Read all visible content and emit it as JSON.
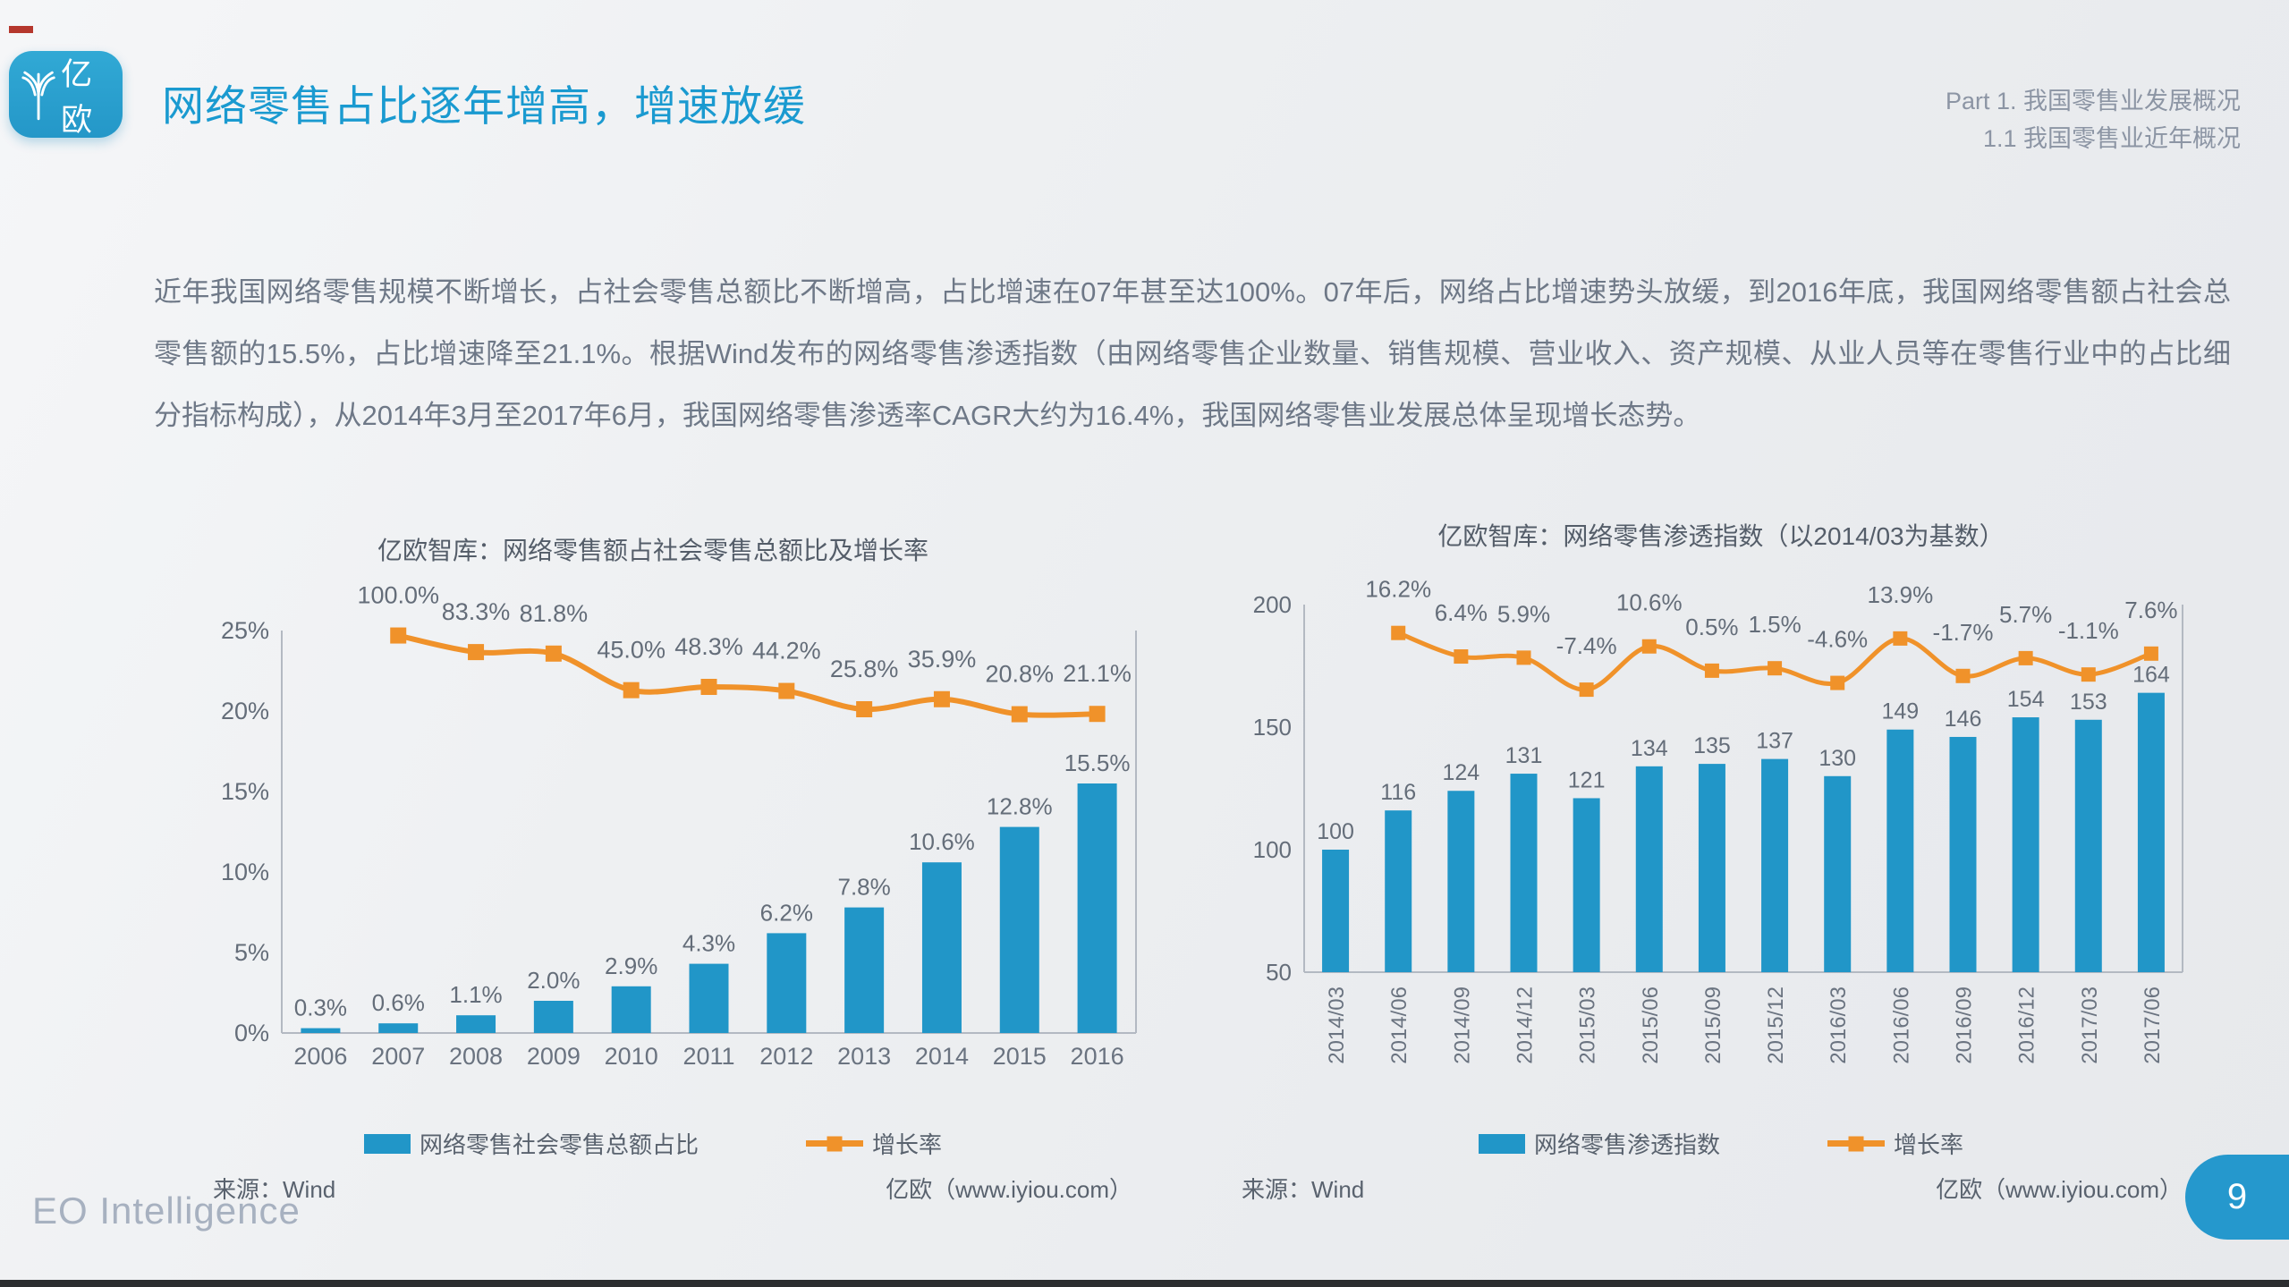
{
  "header": {
    "logo_text": "亿欧",
    "title": "网络零售占比逐年增高，增速放缓",
    "section_line1": "Part 1. 我国零售业发展概况",
    "section_line2": "1.1 我国零售业近年概况"
  },
  "body_paragraph": "近年我国网络零售规模不断增长，占社会零售总额比不断增高，占比增速在07年甚至达100%。07年后，网络占比增速势头放缓，到2016年底，我国网络零售额占社会总零售额的15.5%，占比增速降至21.1%。根据Wind发布的网络零售渗透指数（由网络零售企业数量、销售规模、营业收入、资产规模、从业人员等在零售行业中的占比细分指标构成），从2014年3月至2017年6月，我国网络零售渗透率CAGR大约为16.4%，我国网络零售业发展总体呈现增长态势。",
  "footer": {
    "brand": "EO Intelligence",
    "page_number": "9"
  },
  "colors": {
    "accent_blue": "#2196c8",
    "accent_orange": "#f0922a",
    "title_blue": "#1a9ad0",
    "logo_blue": "#2ba3d0",
    "badge_blue": "#2598cd",
    "text_gray": "#6e7887",
    "axis_gray": "#b3b9c2"
  },
  "chart_data": [
    {
      "type": "bar",
      "title": "亿欧智库：网络零售额占社会零售总额比及增长率",
      "categories": [
        "2006",
        "2007",
        "2008",
        "2009",
        "2010",
        "2011",
        "2012",
        "2013",
        "2014",
        "2015",
        "2016"
      ],
      "y_axis": {
        "tick_labels": [
          "25%",
          "20%",
          "15%",
          "10%",
          "5%",
          "0%"
        ],
        "tick_values": [
          25,
          20,
          15,
          10,
          5,
          0
        ],
        "ylim": [
          0,
          25
        ],
        "grid": false
      },
      "bar_series": {
        "name": "网络零售社会零售总额占比",
        "color": "#2196c8",
        "values": [
          0.3,
          0.6,
          1.1,
          2.0,
          2.9,
          4.3,
          6.2,
          7.8,
          10.6,
          12.8,
          15.5
        ],
        "labels": [
          "0.3%",
          "0.6%",
          "1.1%",
          "2.0%",
          "2.9%",
          "4.3%",
          "6.2%",
          "7.8%",
          "10.6%",
          "12.8%",
          "15.5%"
        ]
      },
      "line_series": {
        "name": "增长率",
        "color": "#f0922a",
        "values": [
          null,
          100.0,
          83.3,
          81.8,
          45.0,
          48.3,
          44.2,
          25.8,
          35.9,
          20.8,
          21.1
        ],
        "labels": [
          null,
          "100.0%",
          "83.3%",
          "81.8%",
          "45.0%",
          "48.3%",
          "44.2%",
          "25.8%",
          "35.9%",
          "20.8%",
          "21.1%"
        ]
      },
      "source_left": "来源：Wind",
      "source_right": "亿欧（www.iyiou.com）"
    },
    {
      "type": "bar",
      "title": "亿欧智库：网络零售渗透指数（以2014/03为基数）",
      "categories": [
        "2014/03",
        "2014/06",
        "2014/09",
        "2014/12",
        "2015/03",
        "2015/06",
        "2015/09",
        "2015/12",
        "2016/03",
        "2016/06",
        "2016/09",
        "2016/12",
        "2017/03",
        "2017/06"
      ],
      "y_axis": {
        "tick_labels": [
          "200",
          "150",
          "100",
          "50"
        ],
        "tick_values": [
          200,
          150,
          100,
          50
        ],
        "ylim": [
          50,
          200
        ],
        "grid": false
      },
      "bar_series": {
        "name": "网络零售渗透指数",
        "color": "#2196c8",
        "values": [
          100,
          116,
          124,
          131,
          121,
          134,
          135,
          137,
          130,
          149,
          146,
          154,
          153,
          164
        ],
        "labels": [
          "100",
          "116",
          "124",
          "131",
          "121",
          "134",
          "135",
          "137",
          "130",
          "149",
          "146",
          "154",
          "153",
          "164"
        ]
      },
      "line_series": {
        "name": "增长率",
        "color": "#f0922a",
        "values": [
          null,
          16.2,
          6.4,
          5.9,
          -7.4,
          10.6,
          0.5,
          1.5,
          -4.6,
          13.9,
          -1.7,
          5.7,
          -1.1,
          7.6
        ],
        "labels": [
          null,
          "16.2%",
          "6.4%",
          "5.9%",
          "-7.4%",
          "10.6%",
          "0.5%",
          "1.5%",
          "-4.6%",
          "13.9%",
          "-1.7%",
          "5.7%",
          "-1.1%",
          "7.6%"
        ]
      },
      "source_left": "来源：Wind",
      "source_right": "亿欧（www.iyiou.com）"
    }
  ]
}
